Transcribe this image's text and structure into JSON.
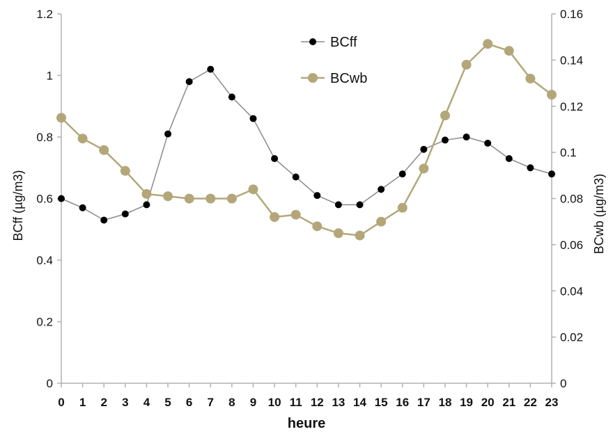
{
  "chart_data": {
    "type": "line",
    "xlabel": "heure",
    "ylabel_left": "BCff (µg/m3)",
    "ylabel_right": "BCwb (µg/m3)",
    "x": [
      0,
      1,
      2,
      3,
      4,
      5,
      6,
      7,
      8,
      9,
      10,
      11,
      12,
      13,
      14,
      15,
      16,
      17,
      18,
      19,
      20,
      21,
      22,
      23
    ],
    "ylim_left": [
      0,
      1.2
    ],
    "ylim_right": [
      0,
      0.16
    ],
    "yticks_left": [
      "0",
      "0.2",
      "0.4",
      "0.6",
      "0.8",
      "1",
      "1.2"
    ],
    "yticks_right": [
      "0",
      "0.02",
      "0.04",
      "0.06",
      "0.08",
      "0.1",
      "0.12",
      "0.14",
      "0.16"
    ],
    "xticks": [
      "0",
      "1",
      "2",
      "3",
      "4",
      "5",
      "6",
      "7",
      "8",
      "9",
      "10",
      "11",
      "12",
      "13",
      "14",
      "15",
      "16",
      "17",
      "18",
      "19",
      "20",
      "21",
      "22",
      "23"
    ],
    "legend_position": "top-center",
    "grid": false,
    "series": [
      {
        "name": "BCff",
        "axis": "left",
        "color": "#000000",
        "line_color": "#8a8a8a",
        "values": [
          0.6,
          0.57,
          0.53,
          0.55,
          0.58,
          0.81,
          0.98,
          1.02,
          0.93,
          0.86,
          0.73,
          0.67,
          0.61,
          0.58,
          0.58,
          0.63,
          0.68,
          0.76,
          0.79,
          0.8,
          0.78,
          0.73,
          0.7,
          0.68
        ]
      },
      {
        "name": "BCwb",
        "axis": "right",
        "color": "#b3a77a",
        "line_color": "#b3a77a",
        "values": [
          0.115,
          0.106,
          0.101,
          0.092,
          0.082,
          0.081,
          0.08,
          0.08,
          0.08,
          0.084,
          0.072,
          0.073,
          0.068,
          0.065,
          0.064,
          0.07,
          0.076,
          0.093,
          0.116,
          0.138,
          0.147,
          0.144,
          0.132,
          0.125
        ]
      }
    ]
  }
}
